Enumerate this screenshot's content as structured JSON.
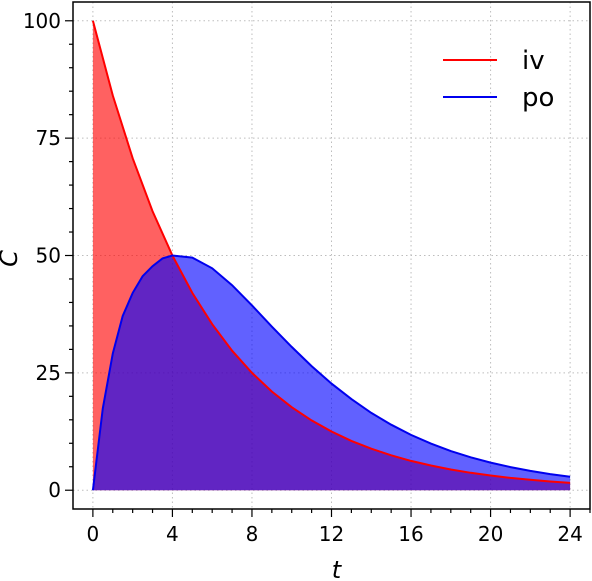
{
  "chart_data": {
    "type": "area",
    "xlabel": "t",
    "ylabel": "C",
    "xlim": [
      -1,
      25
    ],
    "ylim": [
      -4,
      104
    ],
    "xticks": [
      0,
      4,
      8,
      12,
      16,
      20,
      24
    ],
    "yticks": [
      0,
      25,
      50,
      75,
      100
    ],
    "grid": true,
    "legend_position": "top-right",
    "series": [
      {
        "name": "iv",
        "line_color": "#ff0000",
        "fill_color": "#ff0000",
        "fill_opacity": 0.62,
        "x": [
          0,
          1,
          2,
          3,
          4,
          5,
          6,
          7,
          8,
          9,
          10,
          11,
          12,
          13,
          14,
          15,
          16,
          17,
          18,
          19,
          20,
          21,
          22,
          23,
          24
        ],
        "y": [
          100,
          84.09,
          70.71,
          59.46,
          50.0,
          42.04,
          35.36,
          29.73,
          25.0,
          21.02,
          17.68,
          14.87,
          12.5,
          10.51,
          8.84,
          7.43,
          6.25,
          5.26,
          4.42,
          3.72,
          3.13,
          2.63,
          2.21,
          1.86,
          1.56
        ]
      },
      {
        "name": "po",
        "line_color": "#0000ee",
        "fill_color": "#0000ff",
        "fill_opacity": 0.62,
        "x": [
          0,
          0.5,
          1,
          1.5,
          2,
          2.5,
          3,
          3.5,
          4,
          5,
          6,
          7,
          8,
          9,
          10,
          11,
          12,
          13,
          14,
          15,
          16,
          17,
          18,
          19,
          20,
          21,
          22,
          23,
          24
        ],
        "y": [
          0,
          17.43,
          29.13,
          37.12,
          42.04,
          45.6,
          47.73,
          49.38,
          50.0,
          49.56,
          47.27,
          43.68,
          39.36,
          34.85,
          30.52,
          26.43,
          22.71,
          19.4,
          16.48,
          13.96,
          11.79,
          9.93,
          8.34,
          7.01,
          5.88,
          4.92,
          4.11,
          3.44,
          2.87
        ]
      }
    ]
  }
}
